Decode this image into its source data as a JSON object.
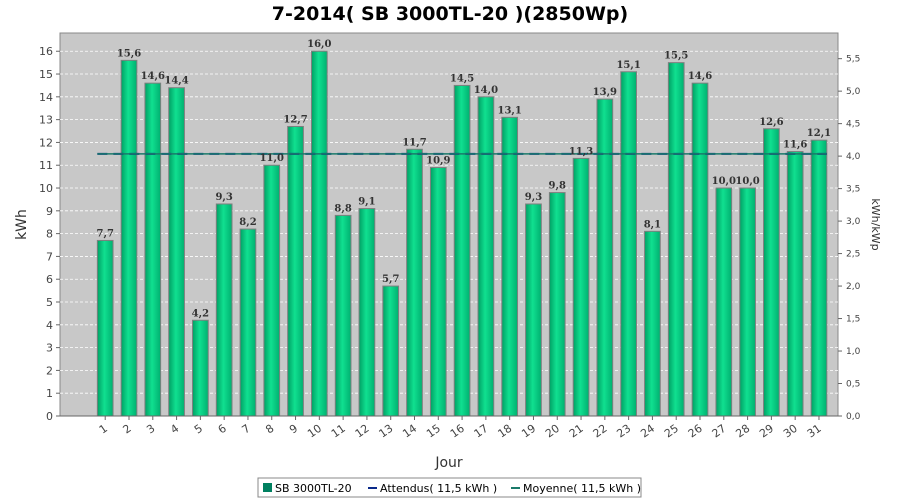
{
  "chart_data": {
    "type": "bar",
    "title": "7-2014( SB 3000TL-20 )(2850Wp)",
    "xlabel": "Jour",
    "ylabel": "kWh",
    "y2label": "kWh/kWp",
    "categories": [
      "1",
      "2",
      "3",
      "4",
      "5",
      "6",
      "7",
      "8",
      "9",
      "10",
      "11",
      "12",
      "13",
      "14",
      "15",
      "16",
      "17",
      "18",
      "19",
      "20",
      "21",
      "22",
      "23",
      "24",
      "25",
      "26",
      "27",
      "28",
      "29",
      "30",
      "31"
    ],
    "series": [
      {
        "name": "SB 3000TL-20",
        "color": "#00c080",
        "values": [
          7.7,
          15.6,
          14.6,
          14.4,
          4.2,
          9.3,
          8.2,
          11.0,
          12.7,
          16.0,
          8.8,
          9.1,
          5.7,
          11.7,
          10.9,
          14.5,
          14.0,
          13.1,
          9.3,
          9.8,
          11.3,
          13.9,
          15.1,
          8.1,
          15.5,
          14.6,
          10.0,
          10.0,
          12.6,
          11.6,
          12.1
        ],
        "labels": [
          "7,7",
          "15,6",
          "14,6",
          "14,4",
          "4,2",
          "9,3",
          "8,2",
          "11,0",
          "12,7",
          "16,0",
          "8,8",
          "9,1",
          "5,7",
          "11,7",
          "10,9",
          "14,5",
          "14,0",
          "13,1",
          "9,3",
          "9,8",
          "11,3",
          "13,9",
          "15,1",
          "8,1",
          "15,5",
          "14,6",
          "10,0",
          "10,0",
          "12,6",
          "11,6",
          "12,1"
        ]
      }
    ],
    "lines": [
      {
        "name": "Attendus",
        "legend": "Attendus( 11,5 kWh )",
        "value": 11.5,
        "color": "#0a2a8a",
        "style": "dashed"
      },
      {
        "name": "Moyenne",
        "legend": "Moyenne( 11,5 kWh )",
        "value": 11.5,
        "color": "#1a7a6a",
        "style": "solid"
      }
    ],
    "ylim": [
      0,
      16.8
    ],
    "yticks": [
      "0",
      "1",
      "2",
      "3",
      "4",
      "5",
      "6",
      "7",
      "8",
      "9",
      "10",
      "11",
      "12",
      "13",
      "14",
      "15",
      "16"
    ],
    "y2lim": [
      0,
      5.895
    ],
    "y2ticks": [
      "0,0",
      "0,5",
      "1,0",
      "1,5",
      "2,0",
      "2,5",
      "3,0",
      "3,5",
      "4,0",
      "4,5",
      "5,0",
      "5,5"
    ],
    "grid": true,
    "legend_position": "bottom"
  }
}
